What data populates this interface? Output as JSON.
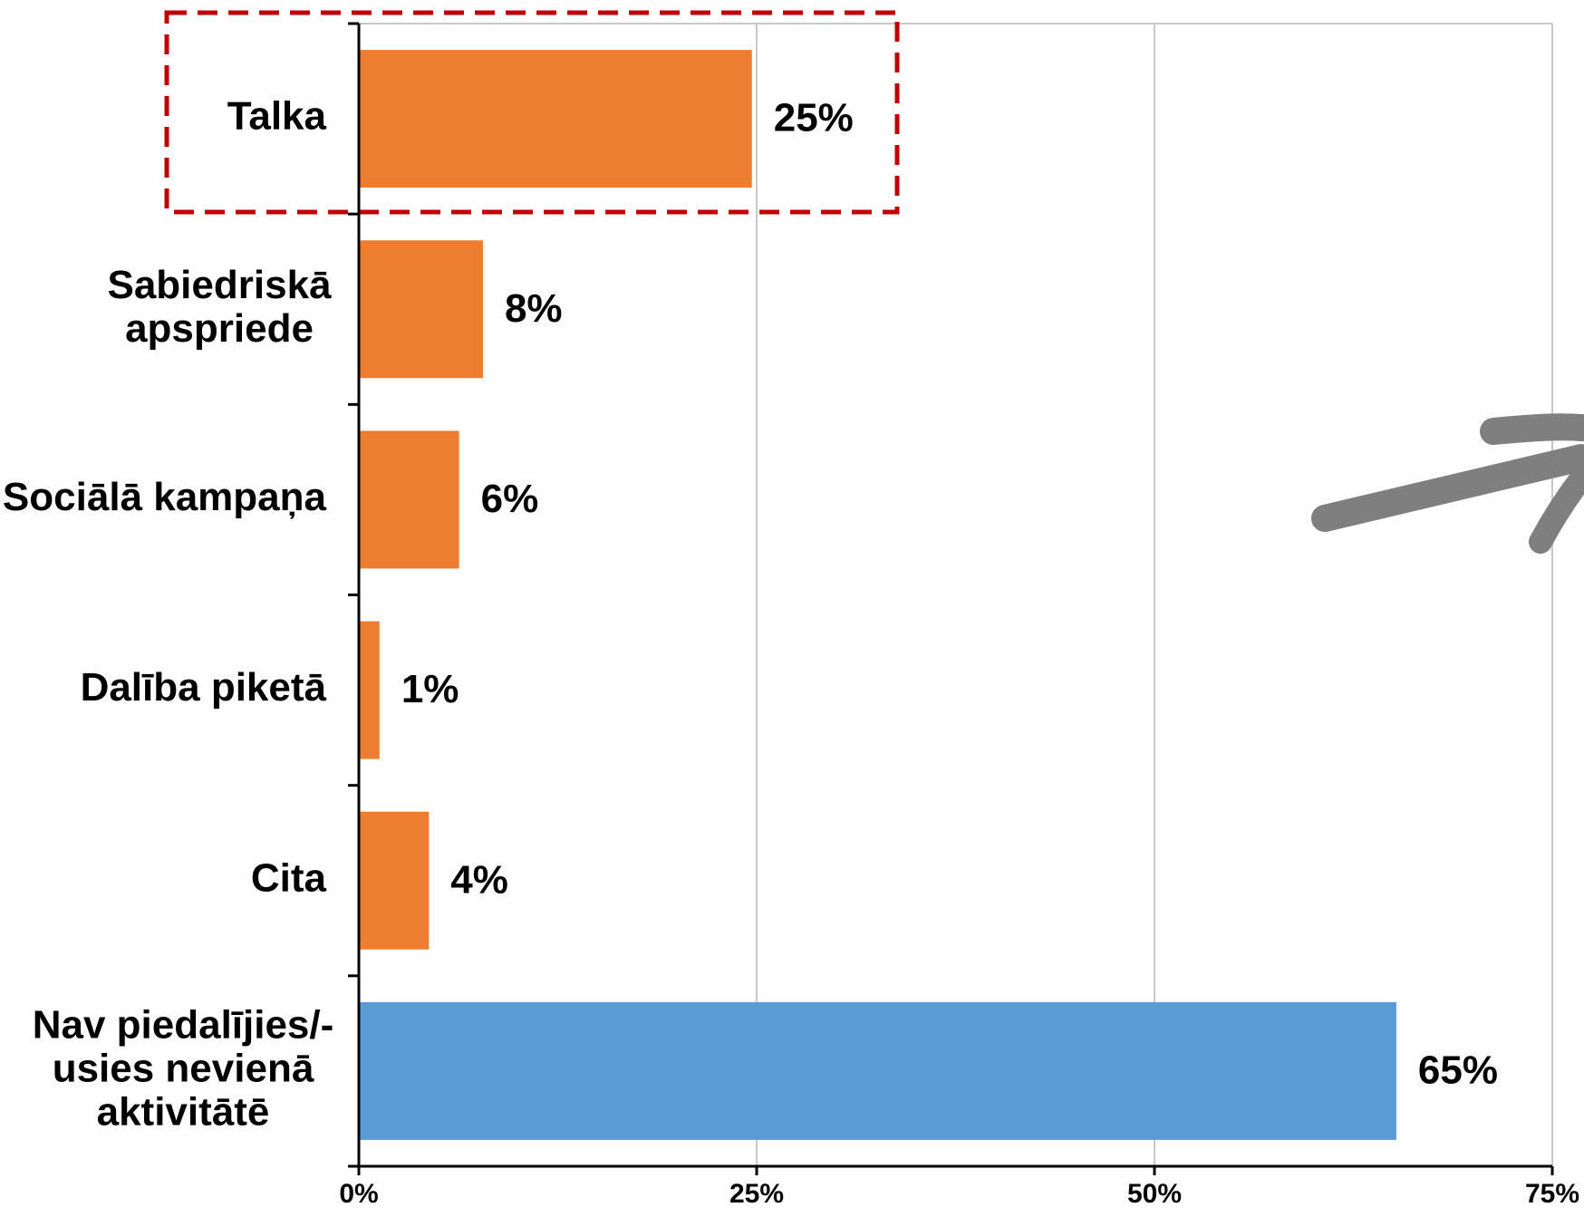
{
  "chart_data": {
    "type": "bar",
    "orientation": "horizontal",
    "categories": [
      [
        "Talka"
      ],
      [
        "Sabiedriskā",
        "apspriede"
      ],
      [
        "Sociālā kampaņa"
      ],
      [
        "Dalība piketā"
      ],
      [
        "Cita"
      ],
      [
        "Nav piedalījies/-",
        "usies nevienā",
        "aktivitātē"
      ]
    ],
    "values": [
      25,
      8,
      6,
      1,
      4,
      65
    ],
    "bar_value_fractions": [
      0.247,
      0.078,
      0.063,
      0.013,
      0.044,
      0.652
    ],
    "data_labels": [
      "25%",
      "8%",
      "6%",
      "1%",
      "4%",
      "65%"
    ],
    "bar_colors": [
      "#ed7d31",
      "#ed7d31",
      "#ed7d31",
      "#ed7d31",
      "#ed7d31",
      "#5b9bd5"
    ],
    "x_ticks": [
      {
        "value": 0,
        "label": "0%"
      },
      {
        "value": 25,
        "label": "25%"
      },
      {
        "value": 50,
        "label": "50%"
      },
      {
        "value": 75,
        "label": "75%"
      }
    ],
    "xlim": [
      0,
      75
    ],
    "grid": true,
    "grid_color": "#c8c8c8",
    "highlight": {
      "category_index": 0,
      "style": "dashed-box",
      "color": "#c00000"
    },
    "arrow": {
      "color": "#7f7f7f",
      "direction": "up-right"
    },
    "title": "",
    "xlabel": "",
    "ylabel": ""
  }
}
